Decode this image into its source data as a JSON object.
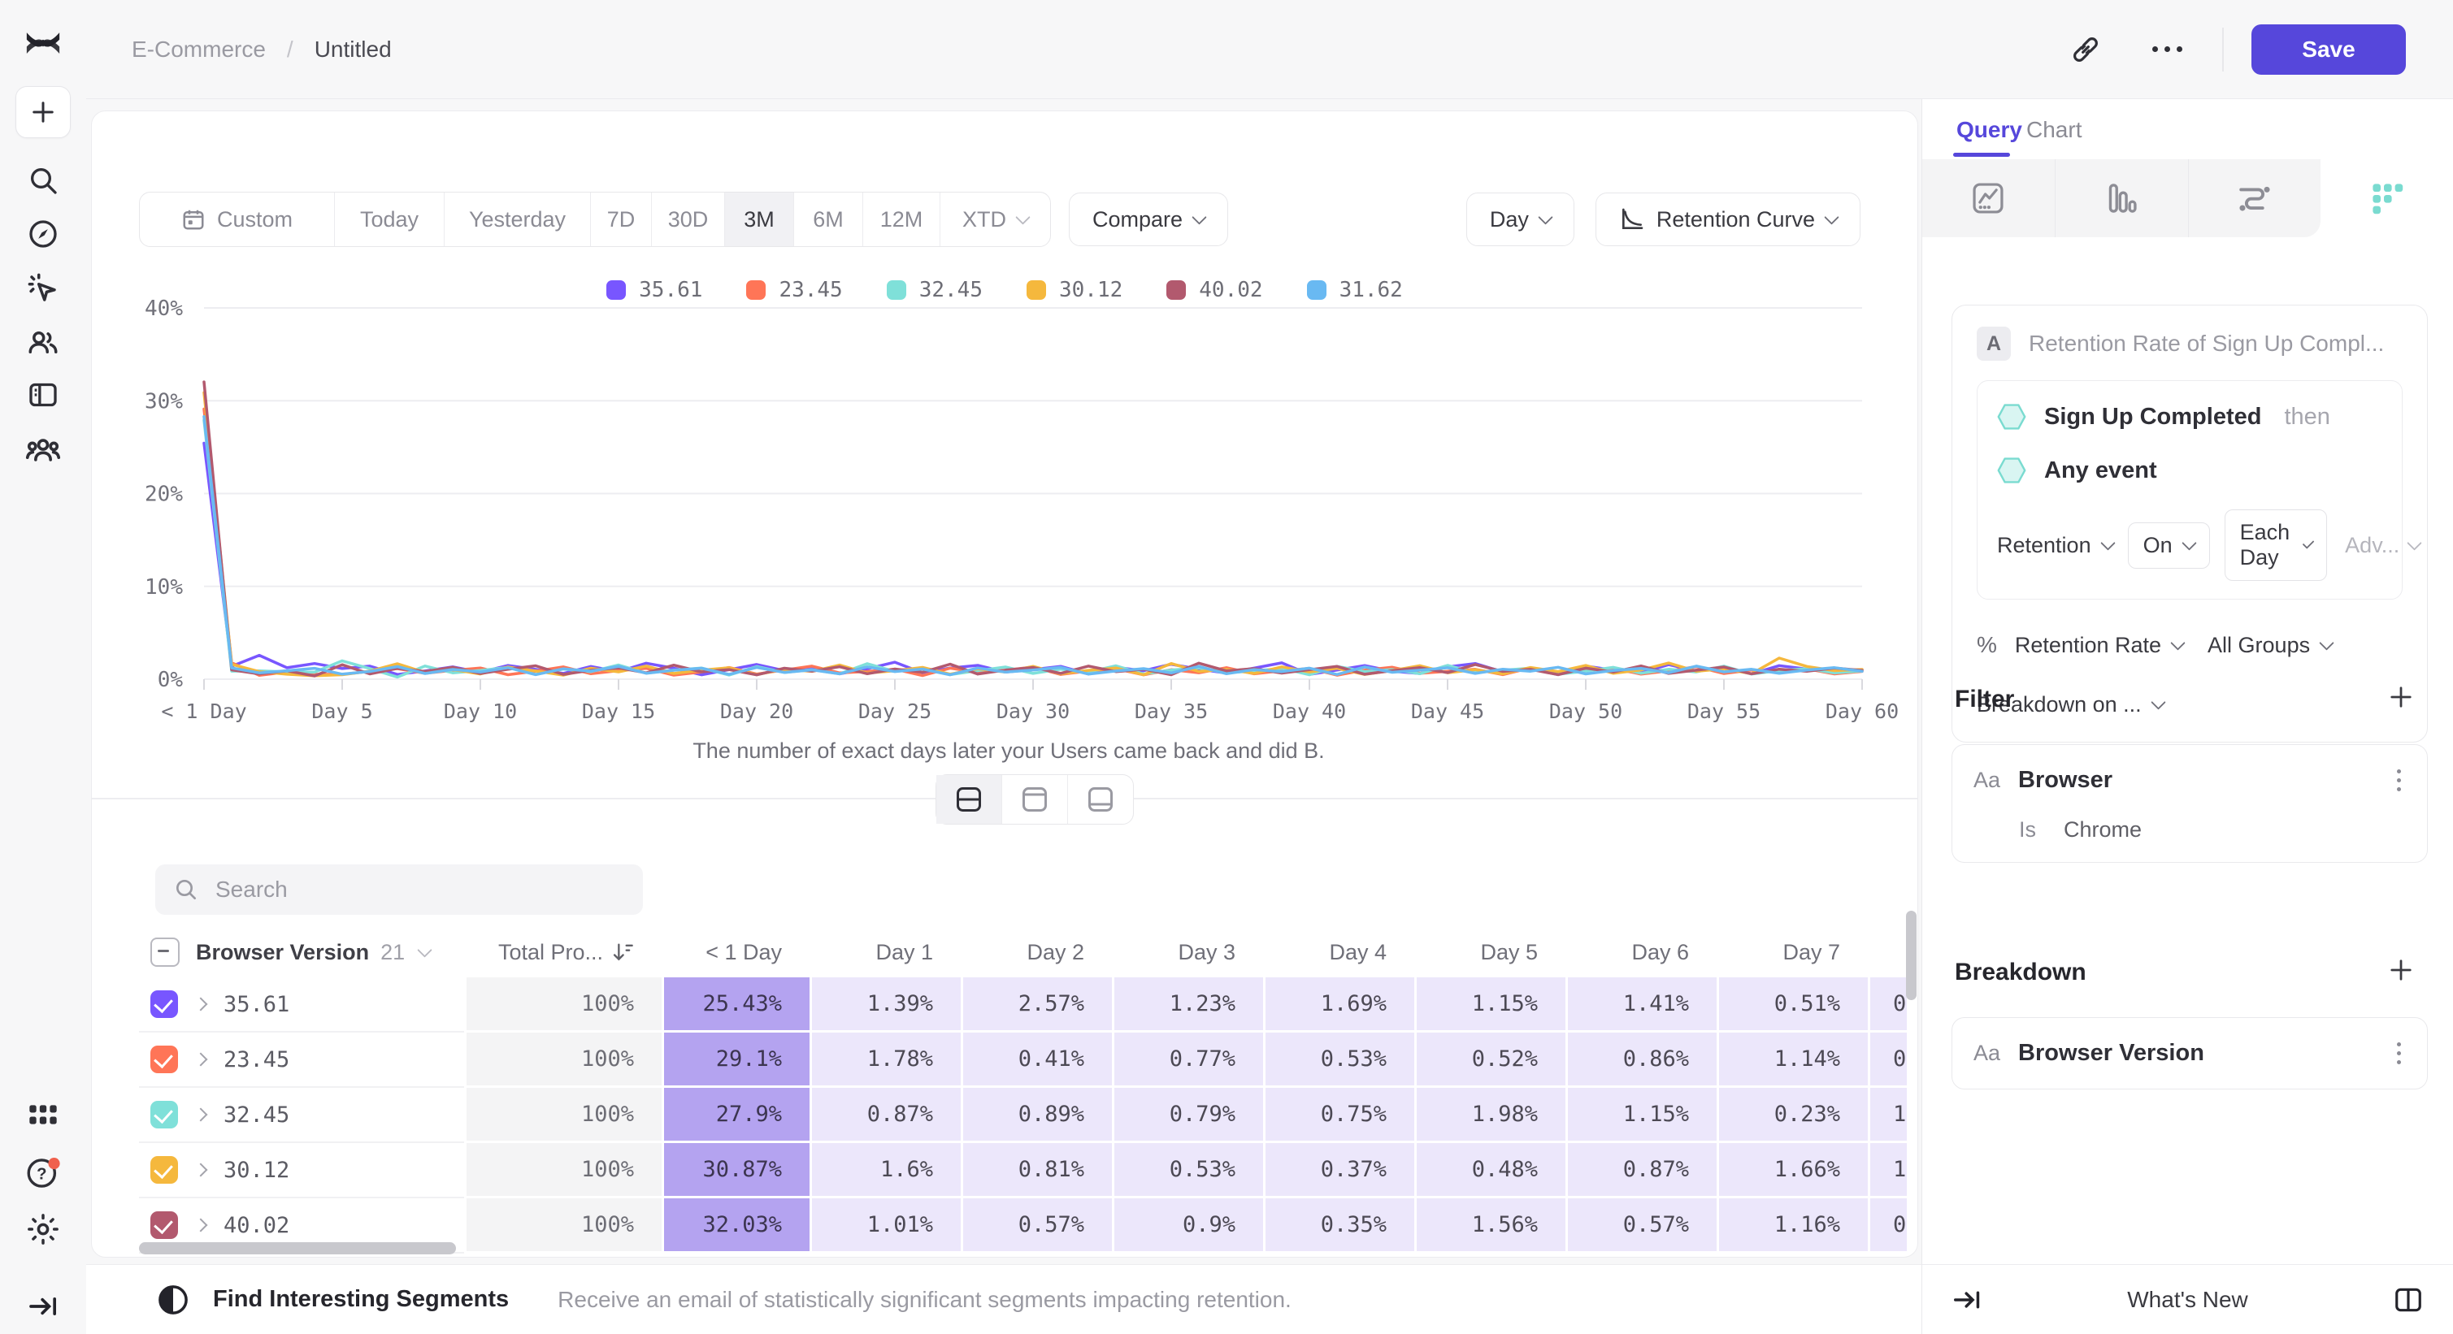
{
  "topbar": {
    "breadcrumb": [
      "E-Commerce",
      "Untitled"
    ],
    "save_label": "Save"
  },
  "controls": {
    "date_buttons": [
      "Custom",
      "Today",
      "Yesterday",
      "7D",
      "30D",
      "3M",
      "6M",
      "12M",
      "XTD"
    ],
    "selected_date": "3M",
    "compare_label": "Compare",
    "granularity_label": "Day",
    "chart_type_label": "Retention Curve"
  },
  "chart_data": {
    "type": "line",
    "title": "Retention Curve",
    "caption": "The number of exact days later your Users came back and did B.",
    "ylim": [
      0,
      40
    ],
    "x_range_days": [
      0,
      60
    ],
    "grid": true,
    "legend_position": "top-center",
    "y_tick_labels": [
      "0%",
      "10%",
      "20%",
      "30%",
      "40%"
    ],
    "x_tick_labels": [
      "< 1 Day",
      "Day 5",
      "Day 10",
      "Day 15",
      "Day 20",
      "Day 25",
      "Day 30",
      "Day 35",
      "Day 40",
      "Day 45",
      "Day 50",
      "Day 55",
      "Day 60"
    ],
    "series": [
      {
        "name": "35.61",
        "color": "#7856FF",
        "values": [
          25.43,
          1.39,
          2.57,
          1.23,
          1.69,
          1.15,
          1.41,
          0.51,
          0.88,
          1.32,
          0.74,
          1.48,
          1.05,
          0.62,
          1.37,
          0.81,
          1.72,
          1.18,
          0.47,
          1.02,
          1.58,
          0.93,
          1.27,
          0.58,
          1.12,
          1.83,
          0.69,
          1.21,
          1.49,
          0.77,
          1.04,
          1.38,
          0.56,
          1.29,
          0.91,
          1.61,
          1.08,
          0.66,
          1.19,
          1.76,
          0.52,
          0.98,
          1.47,
          0.86,
          0.61,
          1.33,
          1.69,
          0.79,
          1.11,
          0.49,
          1.42,
          0.97,
          0.68,
          1.57,
          0.89,
          1.24,
          0.57,
          1.46,
          1.09,
          0.78,
          1.02
        ]
      },
      {
        "name": "23.45",
        "color": "#FF7557",
        "values": [
          29.1,
          1.78,
          0.41,
          0.77,
          0.53,
          0.52,
          0.86,
          1.14,
          0.63,
          0.95,
          1.21,
          0.48,
          0.87,
          1.33,
          0.59,
          0.92,
          1.17,
          0.44,
          0.78,
          1.26,
          0.55,
          0.99,
          1.41,
          0.67,
          0.83,
          1.08,
          0.39,
          1.19,
          0.74,
          0.96,
          1.31,
          0.51,
          0.88,
          1.12,
          0.46,
          1.02,
          0.69,
          1.24,
          0.58,
          0.91,
          1.16,
          0.43,
          0.97,
          1.29,
          0.64,
          0.85,
          1.07,
          0.49,
          1.22,
          0.76,
          0.94,
          1.18,
          0.54,
          0.89,
          1.35,
          0.61,
          0.98,
          0.72,
          1.11,
          0.57,
          0.84
        ]
      },
      {
        "name": "32.45",
        "color": "#7FE0D9",
        "values": [
          27.9,
          0.87,
          0.89,
          0.79,
          0.75,
          1.98,
          1.15,
          0.23,
          1.42,
          0.68,
          0.94,
          1.27,
          0.52,
          1.09,
          0.81,
          1.53,
          0.66,
          0.97,
          1.21,
          0.45,
          1.36,
          0.73,
          1.02,
          0.58,
          1.67,
          0.84,
          1.13,
          0.49,
          0.92,
          1.31,
          0.62,
          1.08,
          0.77,
          1.44,
          0.56,
          0.99,
          1.22,
          0.69,
          0.88,
          1.16,
          0.47,
          1.38,
          0.82,
          1.04,
          0.59,
          1.49,
          0.71,
          0.96,
          1.19,
          0.53,
          0.87,
          1.28,
          0.64,
          1.07,
          0.78,
          1.41,
          0.55,
          0.93,
          1.14,
          0.67,
          0.89
        ]
      },
      {
        "name": "30.12",
        "color": "#F5B83D",
        "values": [
          30.87,
          1.6,
          0.81,
          0.53,
          0.37,
          0.48,
          0.87,
          1.66,
          0.72,
          1.04,
          0.56,
          1.31,
          0.88,
          0.44,
          1.18,
          0.79,
          1.42,
          0.61,
          0.97,
          1.23,
          0.49,
          1.08,
          0.84,
          1.52,
          0.66,
          0.91,
          1.27,
          0.54,
          1.13,
          0.76,
          1.38,
          0.58,
          0.95,
          1.21,
          0.47,
          1.69,
          0.83,
          1.06,
          0.62,
          1.33,
          0.78,
          1.17,
          0.51,
          0.94,
          1.45,
          0.69,
          1.02,
          0.57,
          1.26,
          0.81,
          1.48,
          0.63,
          0.99,
          1.74,
          0.86,
          1.12,
          0.59,
          2.28,
          1.37,
          0.92,
          1.05
        ]
      },
      {
        "name": "40.02",
        "color": "#B2596E",
        "values": [
          32.03,
          1.01,
          0.57,
          0.9,
          0.35,
          1.56,
          0.57,
          1.16,
          0.83,
          1.29,
          0.61,
          1.07,
          1.44,
          0.52,
          0.96,
          1.22,
          0.68,
          1.51,
          0.79,
          1.03,
          0.46,
          1.18,
          0.87,
          1.34,
          0.59,
          1.09,
          0.74,
          1.62,
          0.55,
          0.98,
          1.26,
          0.63,
          1.41,
          0.81,
          1.07,
          0.48,
          1.72,
          0.89,
          1.14,
          0.66,
          1.02,
          1.37,
          0.53,
          0.92,
          1.24,
          0.71,
          1.58,
          0.84,
          1.06,
          0.49,
          1.19,
          0.77,
          1.43,
          0.62,
          0.97,
          1.31,
          0.58,
          1.08,
          0.86,
          1.21,
          0.94
        ]
      },
      {
        "name": "31.62",
        "color": "#69B9F2",
        "values": [
          28.3,
          1.22,
          0.68,
          0.91,
          1.17,
          0.54,
          0.83,
          1.36,
          0.61,
          1.05,
          0.78,
          1.24,
          0.49,
          1.12,
          0.87,
          1.39,
          0.64,
          0.96,
          1.18,
          0.52,
          1.27,
          0.73,
          1.01,
          0.58,
          1.33,
          0.82,
          1.09,
          0.47,
          1.21,
          0.76,
          0.99,
          1.28,
          0.55,
          0.88,
          1.14,
          0.67,
          1.37,
          0.59,
          1.03,
          0.81,
          1.19,
          0.51,
          1.32,
          0.74,
          0.97,
          1.23,
          0.62,
          1.08,
          0.86,
          1.29,
          0.57,
          0.94,
          1.16,
          0.69,
          1.41,
          0.79,
          1.07,
          0.63,
          0.98,
          1.24,
          0.85
        ]
      }
    ]
  },
  "search": {
    "placeholder": "Search"
  },
  "table": {
    "header": {
      "group_label": "Browser Version",
      "group_count": "21",
      "total_label": "Total Pro...",
      "day_columns": [
        "< 1 Day",
        "Day 1",
        "Day 2",
        "Day 3",
        "Day 4",
        "Day 5",
        "Day 6",
        "Day 7"
      ]
    },
    "rows": [
      {
        "color": "#7856FF",
        "label": "35.61",
        "total": "100%",
        "lt1": "25.43%",
        "days": [
          "1.39%",
          "2.57%",
          "1.23%",
          "1.69%",
          "1.15%",
          "1.41%",
          "0.51%"
        ],
        "sliver": "0"
      },
      {
        "color": "#FF7557",
        "label": "23.45",
        "total": "100%",
        "lt1": "29.1%",
        "days": [
          "1.78%",
          "0.41%",
          "0.77%",
          "0.53%",
          "0.52%",
          "0.86%",
          "1.14%"
        ],
        "sliver": "0"
      },
      {
        "color": "#7FE0D9",
        "label": "32.45",
        "total": "100%",
        "lt1": "27.9%",
        "days": [
          "0.87%",
          "0.89%",
          "0.79%",
          "0.75%",
          "1.98%",
          "1.15%",
          "0.23%"
        ],
        "sliver": "1"
      },
      {
        "color": "#F5B83D",
        "label": "30.12",
        "total": "100%",
        "lt1": "30.87%",
        "days": [
          "1.6%",
          "0.81%",
          "0.53%",
          "0.37%",
          "0.48%",
          "0.87%",
          "1.66%"
        ],
        "sliver": "1"
      },
      {
        "color": "#B2596E",
        "label": "40.02",
        "total": "100%",
        "lt1": "32.03%",
        "days": [
          "1.01%",
          "0.57%",
          "0.9%",
          "0.35%",
          "1.56%",
          "0.57%",
          "1.16%"
        ],
        "sliver": "0"
      }
    ]
  },
  "footer": {
    "title": "Find Interesting Segments",
    "description": "Receive an email of statistically significant segments impacting retention."
  },
  "right_panel": {
    "tabs": [
      "Query",
      "Chart"
    ],
    "active_tab": "Query",
    "query": {
      "badge": "A",
      "title": "Retention Rate of Sign Up Compl...",
      "event_1": "Sign Up Completed",
      "then_label": "then",
      "event_2": "Any event",
      "retention_label": "Retention",
      "on_label": "On",
      "each_day_label": "Each Day",
      "advanced_label": "Adv...",
      "measure_prefix": "%",
      "measure_label": "Retention Rate",
      "groups_label": "All Groups",
      "breakdown_on_label": "Breakdown on ..."
    },
    "filter": {
      "title": "Filter",
      "aa": "Aa",
      "property": "Browser",
      "operator": "Is",
      "value": "Chrome"
    },
    "breakdown": {
      "title": "Breakdown",
      "aa": "Aa",
      "property": "Browser Version"
    },
    "whats_new": "What's New"
  },
  "colors": {
    "accent": "#5647db",
    "heat_strong": "#b4a3f0",
    "heat_light": "#ece7fb",
    "teal_icon": "#7adbd0"
  }
}
